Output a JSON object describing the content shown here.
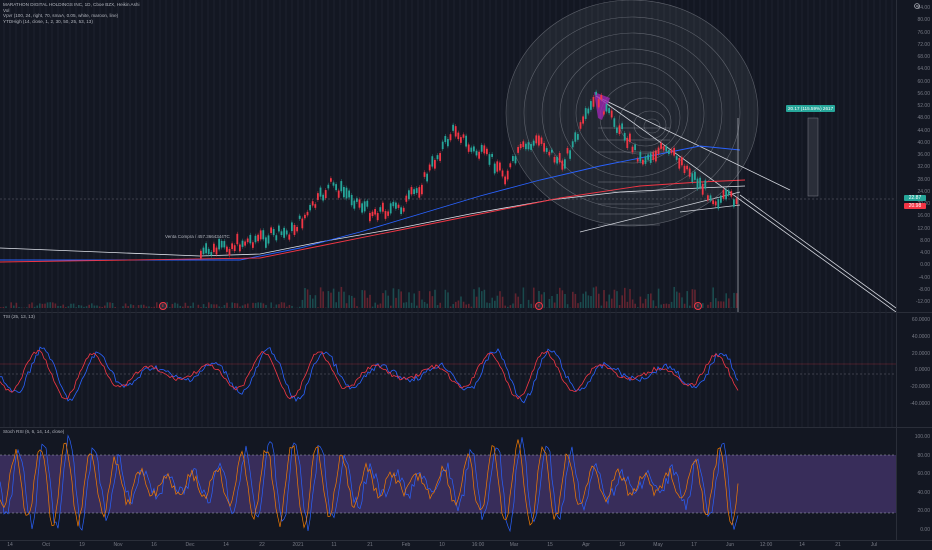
{
  "legend": {
    "title": "MARATHON DIGITAL HOLDINGS INC, 1D, Cboe BZX, Heikin Ashi",
    "vol": "Vol",
    "vpvr": "Vpvr (100, 24, right, 70, smaA, 0.05, white, maroon, line)",
    "ytd": "YTDHigh (14, close, 1, 2, 30, 50, 25, 53, 13)"
  },
  "main_axis": [
    "84.00",
    "80.00",
    "76.00",
    "72.00",
    "68.00",
    "64.00",
    "60.00",
    "56.00",
    "52.00",
    "48.00",
    "44.00",
    "40.00",
    "36.00",
    "32.00",
    "28.00",
    "24.00",
    "20.00",
    "16.00",
    "12.00",
    "8.00",
    "4.00",
    "0.00",
    "-4.00",
    "-8.00",
    "-12.00"
  ],
  "price_tags": {
    "last": "22.87",
    "second": "20.98"
  },
  "target_label": "20.17 (115.59%) 2617",
  "annotation_sell": "Venta Compra / 457.3664344TC",
  "tsi": {
    "label": "TSI (25, 13, 13)",
    "axis": [
      "60.0000",
      "40.0000",
      "20.0000",
      "0.0000",
      "-20.0000",
      "-40.0000"
    ]
  },
  "stoch": {
    "label": "Stoch RSI (6, 6, 14, 14, close)",
    "axis": [
      "100.00",
      "80.00",
      "60.00",
      "40.00",
      "20.00",
      "0.00"
    ]
  },
  "x_axis": [
    "14",
    "Oct",
    "19",
    "Nov",
    "16",
    "Dec",
    "14",
    "22",
    "2021",
    "11",
    "21",
    "Feb",
    "10",
    "16:00",
    "Mar",
    "15",
    "Apr",
    "19",
    "May",
    "17",
    "Jun",
    "12:00",
    "14",
    "21",
    "Jul"
  ],
  "colors": {
    "up": "#26a69a",
    "down": "#f23645",
    "purple": "#9c27b0",
    "blue": "#2962ff",
    "bg": "#131722"
  },
  "event_markers": [
    "E",
    "E",
    "E"
  ]
}
